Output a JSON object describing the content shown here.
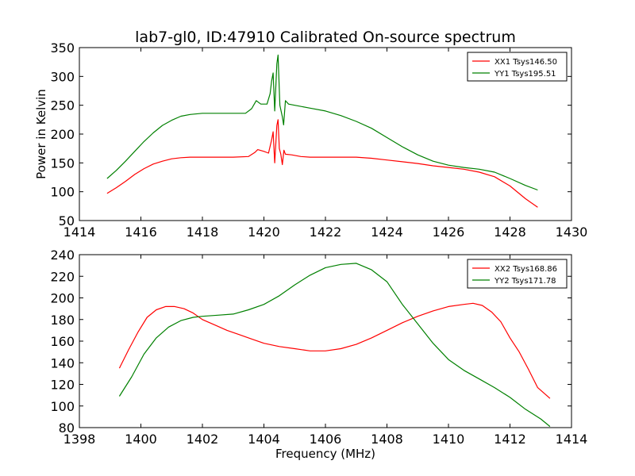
{
  "title": "lab7-gl0, ID:47910 Calibrated On-source spectrum",
  "chart_data": [
    {
      "type": "line",
      "ylabel": "Power in Kelvin",
      "xlabel": "",
      "xlim": [
        1414,
        1430
      ],
      "ylim": [
        50,
        350
      ],
      "xticks": [
        "1414",
        "1416",
        "1418",
        "1420",
        "1422",
        "1424",
        "1426",
        "1428",
        "1430"
      ],
      "yticks": [
        "50",
        "100",
        "150",
        "200",
        "250",
        "300",
        "350"
      ],
      "grid": false,
      "legend_position": "top-right",
      "series": [
        {
          "name": "XX1 Tsys146.50",
          "color": "#ff0000",
          "points": [
            [
              1414.9,
              97
            ],
            [
              1415.2,
              107
            ],
            [
              1415.5,
              118
            ],
            [
              1415.8,
              130
            ],
            [
              1416.1,
              140
            ],
            [
              1416.4,
              148
            ],
            [
              1416.7,
              153
            ],
            [
              1417.0,
              157
            ],
            [
              1417.3,
              159
            ],
            [
              1417.6,
              160
            ],
            [
              1418.0,
              160
            ],
            [
              1418.5,
              160
            ],
            [
              1419.0,
              160
            ],
            [
              1419.5,
              161
            ],
            [
              1419.7,
              168
            ],
            [
              1419.8,
              173
            ],
            [
              1420.0,
              170
            ],
            [
              1420.15,
              167
            ],
            [
              1420.25,
              190
            ],
            [
              1420.3,
              204
            ],
            [
              1420.35,
              150
            ],
            [
              1420.42,
              215
            ],
            [
              1420.46,
              225
            ],
            [
              1420.5,
              175
            ],
            [
              1420.55,
              165
            ],
            [
              1420.6,
              147
            ],
            [
              1420.65,
              172
            ],
            [
              1420.7,
              165
            ],
            [
              1420.9,
              164
            ],
            [
              1421.2,
              161
            ],
            [
              1421.5,
              160
            ],
            [
              1422.0,
              160
            ],
            [
              1422.5,
              160
            ],
            [
              1423.0,
              160
            ],
            [
              1423.5,
              158
            ],
            [
              1424.0,
              155
            ],
            [
              1424.5,
              152
            ],
            [
              1425.0,
              149
            ],
            [
              1425.5,
              145
            ],
            [
              1426.0,
              142
            ],
            [
              1426.5,
              139
            ],
            [
              1427.0,
              134
            ],
            [
              1427.5,
              126
            ],
            [
              1428.0,
              110
            ],
            [
              1428.5,
              88
            ],
            [
              1428.9,
              73
            ]
          ]
        },
        {
          "name": "YY1 Tsys195.51",
          "color": "#008000",
          "points": [
            [
              1414.9,
              123
            ],
            [
              1415.2,
              137
            ],
            [
              1415.5,
              153
            ],
            [
              1415.8,
              170
            ],
            [
              1416.1,
              187
            ],
            [
              1416.4,
              202
            ],
            [
              1416.7,
              215
            ],
            [
              1417.0,
              224
            ],
            [
              1417.3,
              231
            ],
            [
              1417.6,
              234
            ],
            [
              1418.0,
              236
            ],
            [
              1418.5,
              236
            ],
            [
              1419.0,
              236
            ],
            [
              1419.4,
              236
            ],
            [
              1419.6,
              244
            ],
            [
              1419.75,
              258
            ],
            [
              1419.9,
              252
            ],
            [
              1420.1,
              252
            ],
            [
              1420.2,
              270
            ],
            [
              1420.25,
              292
            ],
            [
              1420.3,
              306
            ],
            [
              1420.35,
              240
            ],
            [
              1420.42,
              322
            ],
            [
              1420.46,
              337
            ],
            [
              1420.52,
              250
            ],
            [
              1420.6,
              230
            ],
            [
              1420.64,
              216
            ],
            [
              1420.7,
              258
            ],
            [
              1420.8,
              252
            ],
            [
              1421.0,
              250
            ],
            [
              1421.5,
              245
            ],
            [
              1422.0,
              240
            ],
            [
              1422.5,
              232
            ],
            [
              1423.0,
              222
            ],
            [
              1423.5,
              210
            ],
            [
              1424.0,
              194
            ],
            [
              1424.5,
              178
            ],
            [
              1425.0,
              164
            ],
            [
              1425.5,
              153
            ],
            [
              1426.0,
              146
            ],
            [
              1426.5,
              142
            ],
            [
              1427.0,
              139
            ],
            [
              1427.5,
              134
            ],
            [
              1428.0,
              123
            ],
            [
              1428.5,
              111
            ],
            [
              1428.9,
              103
            ]
          ]
        }
      ]
    },
    {
      "type": "line",
      "xlabel": "Frequency (MHz)",
      "ylabel": "",
      "xlim": [
        1398,
        1414
      ],
      "ylim": [
        80,
        240
      ],
      "xticks": [
        "1398",
        "1400",
        "1402",
        "1404",
        "1406",
        "1408",
        "1410",
        "1412",
        "1414"
      ],
      "yticks": [
        "80",
        "100",
        "120",
        "140",
        "160",
        "180",
        "200",
        "220",
        "240"
      ],
      "grid": false,
      "legend_position": "top-right",
      "series": [
        {
          "name": "XX2 Tsys168.86",
          "color": "#ff0000",
          "points": [
            [
              1399.3,
              135
            ],
            [
              1399.6,
              152
            ],
            [
              1399.9,
              168
            ],
            [
              1400.2,
              182
            ],
            [
              1400.5,
              189
            ],
            [
              1400.8,
              192
            ],
            [
              1401.1,
              192
            ],
            [
              1401.4,
              190
            ],
            [
              1401.7,
              186
            ],
            [
              1402.0,
              180
            ],
            [
              1402.4,
              175
            ],
            [
              1402.8,
              170
            ],
            [
              1403.2,
              166
            ],
            [
              1403.6,
              162
            ],
            [
              1404.0,
              158
            ],
            [
              1404.5,
              155
            ],
            [
              1405.0,
              153
            ],
            [
              1405.5,
              151
            ],
            [
              1406.0,
              151
            ],
            [
              1406.5,
              153
            ],
            [
              1407.0,
              157
            ],
            [
              1407.5,
              163
            ],
            [
              1408.0,
              170
            ],
            [
              1408.5,
              177
            ],
            [
              1409.0,
              183
            ],
            [
              1409.5,
              188
            ],
            [
              1410.0,
              192
            ],
            [
              1410.5,
              194
            ],
            [
              1410.8,
              195
            ],
            [
              1411.1,
              193
            ],
            [
              1411.4,
              187
            ],
            [
              1411.7,
              178
            ],
            [
              1412.0,
              163
            ],
            [
              1412.3,
              150
            ],
            [
              1412.6,
              134
            ],
            [
              1412.9,
              117
            ],
            [
              1413.3,
              107
            ]
          ]
        },
        {
          "name": "YY2 Tsys171.78",
          "color": "#008000",
          "points": [
            [
              1399.3,
              109
            ],
            [
              1399.7,
              127
            ],
            [
              1400.1,
              148
            ],
            [
              1400.5,
              163
            ],
            [
              1400.9,
              173
            ],
            [
              1401.3,
              179
            ],
            [
              1401.7,
              182
            ],
            [
              1402.0,
              183
            ],
            [
              1402.5,
              184
            ],
            [
              1403.0,
              185
            ],
            [
              1403.5,
              189
            ],
            [
              1404.0,
              194
            ],
            [
              1404.5,
              202
            ],
            [
              1405.0,
              212
            ],
            [
              1405.5,
              221
            ],
            [
              1406.0,
              228
            ],
            [
              1406.5,
              231
            ],
            [
              1407.0,
              232
            ],
            [
              1407.5,
              226
            ],
            [
              1408.0,
              215
            ],
            [
              1408.5,
              194
            ],
            [
              1409.0,
              176
            ],
            [
              1409.5,
              158
            ],
            [
              1410.0,
              143
            ],
            [
              1410.5,
              133
            ],
            [
              1411.0,
              125
            ],
            [
              1411.5,
              117
            ],
            [
              1412.0,
              108
            ],
            [
              1412.5,
              97
            ],
            [
              1413.0,
              88
            ],
            [
              1413.3,
              81
            ]
          ]
        }
      ]
    }
  ]
}
